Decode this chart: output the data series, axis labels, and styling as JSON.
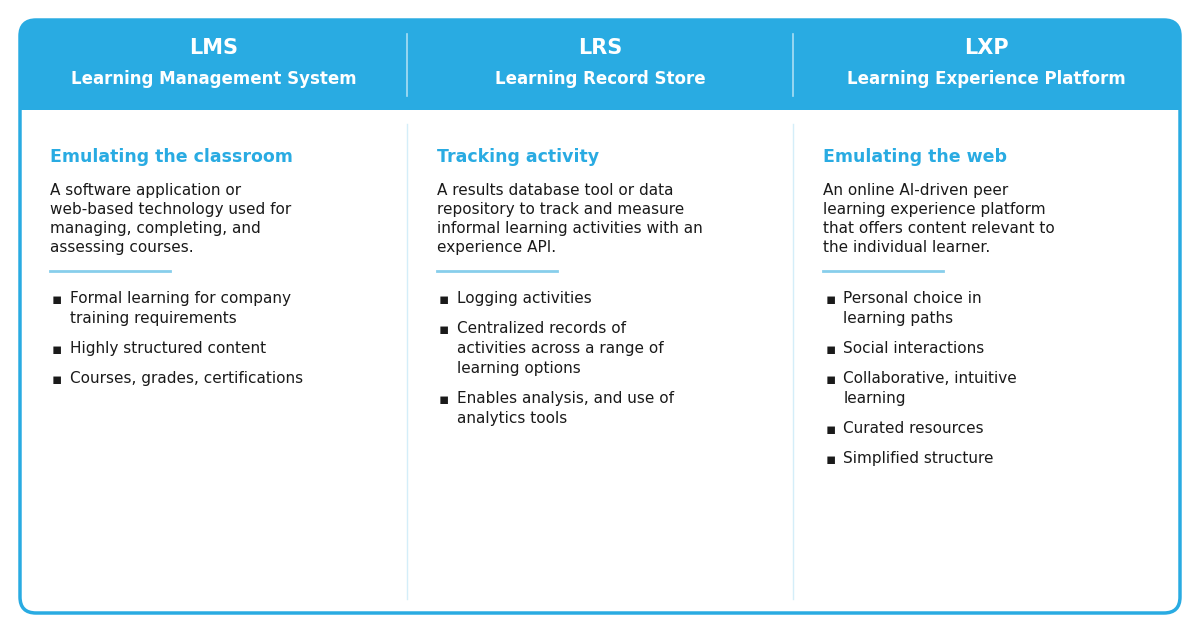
{
  "bg_color": "#ffffff",
  "outer_border_color": "#29ABE2",
  "header_bg_color": "#29ABE2",
  "header_text_color": "#ffffff",
  "cyan_text_color": "#29ABE2",
  "body_text_color": "#1a1a1a",
  "divider_color": "#87CEEB",
  "fig_width": 12.0,
  "fig_height": 6.33,
  "dpi": 100,
  "columns": [
    {
      "title": "LMS",
      "subtitle": "Learning Management System",
      "tagline": "Emulating the classroom",
      "description": "A software application or\nweb-based technology used for\nmanaging, completing, and\nassessing courses.",
      "bullets": [
        "Formal learning for company\ntraining requirements",
        "Highly structured content",
        "Courses, grades, certifications"
      ]
    },
    {
      "title": "LRS",
      "subtitle": "Learning Record Store",
      "tagline": "Tracking activity",
      "description": "A results database tool or data\nrepository to track and measure\ninformal learning activities with an\nexperience API.",
      "bullets": [
        "Logging activities",
        "Centralized records of\nactivities across a range of\nlearning options",
        "Enables analysis, and use of\nanalytics tools"
      ]
    },
    {
      "title": "LXP",
      "subtitle": "Learning Experience Platform",
      "tagline": "Emulating the web",
      "description": "An online AI-driven peer\nlearning experience platform\nthat offers content relevant to\nthe individual learner.",
      "bullets": [
        "Personal choice in\nlearning paths",
        "Social interactions",
        "Collaborative, intuitive\nlearning",
        "Curated resources",
        "Simplified structure"
      ]
    }
  ]
}
